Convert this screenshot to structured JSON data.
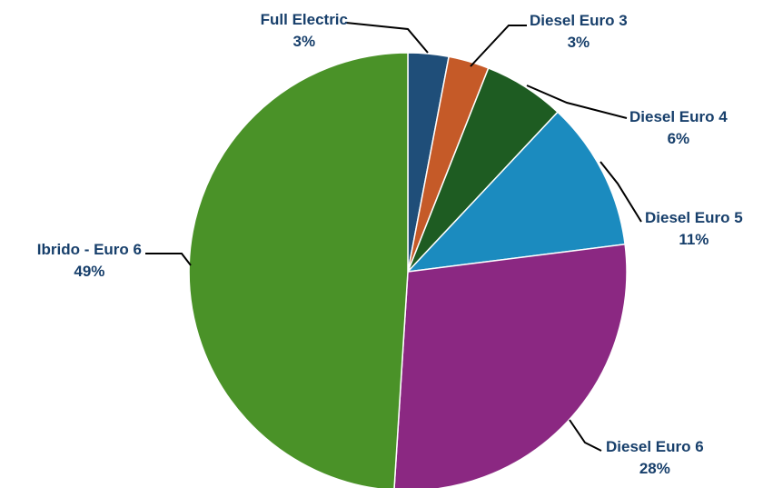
{
  "chart_data": {
    "type": "pie",
    "title": "",
    "legend": "none",
    "slices": [
      {
        "label": "Full Electric",
        "value": 3,
        "display": "3%",
        "color": "#1f4e79"
      },
      {
        "label": "Diesel Euro 3",
        "value": 3,
        "display": "3%",
        "color": "#c55a28"
      },
      {
        "label": "Diesel Euro 4",
        "value": 6,
        "display": "6%",
        "color": "#1e5c22"
      },
      {
        "label": "Diesel Euro 5",
        "value": 11,
        "display": "11%",
        "color": "#1b8bbf"
      },
      {
        "label": "Diesel Euro 6",
        "value": 28,
        "display": "28%",
        "color": "#8b2882"
      },
      {
        "label": "Ibrido - Euro 6",
        "value": 49,
        "display": "49%",
        "color": "#4a9228"
      }
    ]
  }
}
